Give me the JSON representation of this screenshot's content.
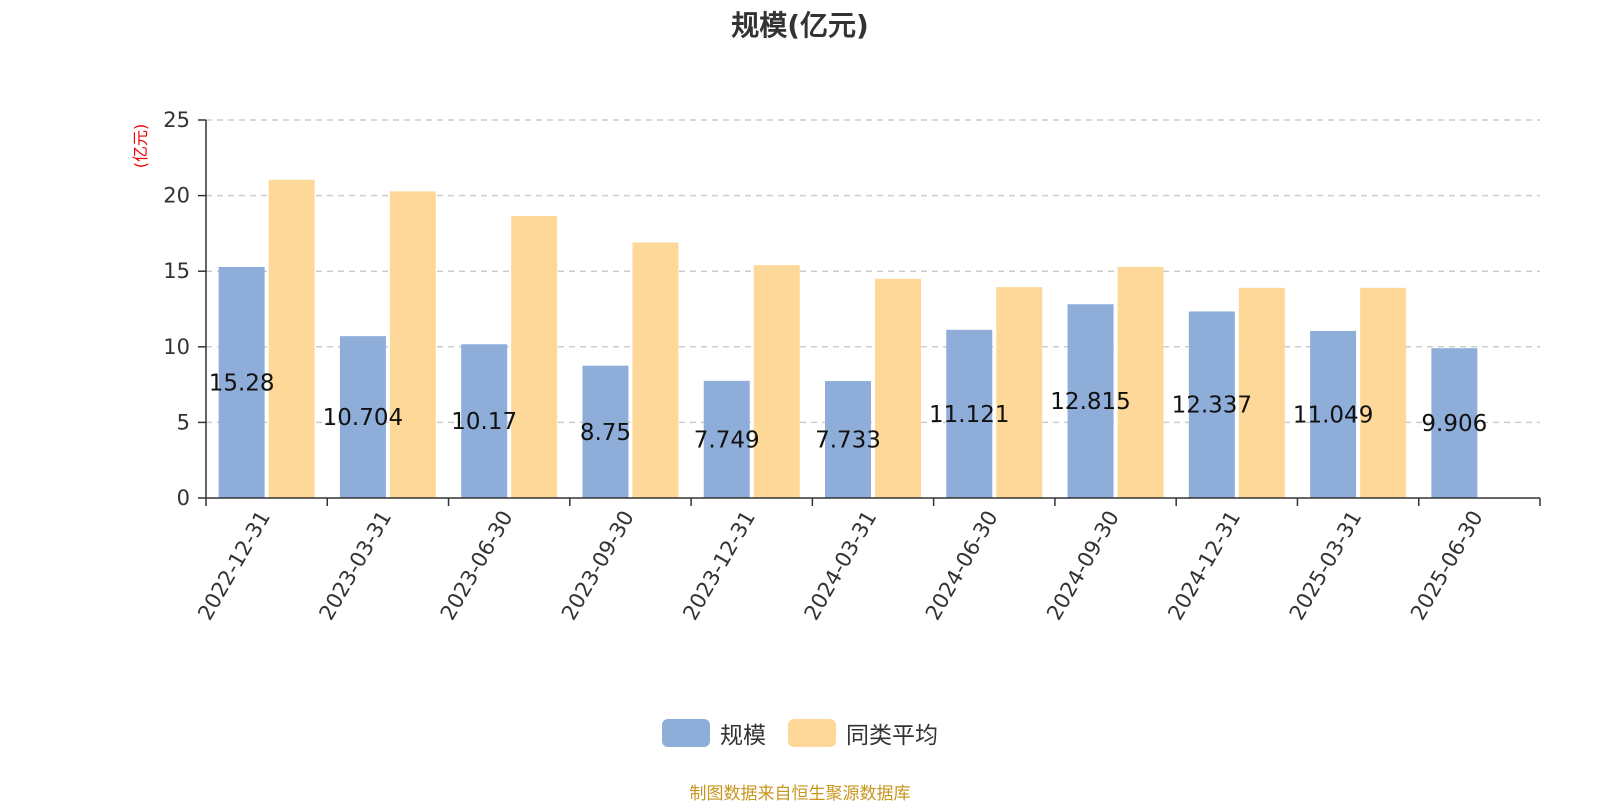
{
  "chart_data": {
    "type": "bar",
    "title": "规模(亿元)",
    "ylabel": "(亿元)",
    "xlabel": "",
    "categories": [
      "2022-12-31",
      "2023-03-31",
      "2023-06-30",
      "2023-09-30",
      "2023-12-31",
      "2024-03-31",
      "2024-06-30",
      "2024-09-30",
      "2024-12-31",
      "2025-03-31",
      "2025-06-30"
    ],
    "series": [
      {
        "name": "规模",
        "color": "#8eadd9",
        "values": [
          15.28,
          10.704,
          10.17,
          8.75,
          7.749,
          7.733,
          11.121,
          12.815,
          12.337,
          11.049,
          9.906
        ],
        "labels": [
          "15.28",
          "10.704",
          "10.17",
          "8.75",
          "7.749",
          "7.733",
          "11.121",
          "12.815",
          "12.337",
          "11.049",
          "9.906"
        ]
      },
      {
        "name": "同类平均",
        "color": "#fed899",
        "values": [
          21.05,
          20.28,
          18.65,
          16.9,
          15.4,
          14.5,
          13.95,
          15.28,
          13.9,
          13.9,
          null
        ]
      }
    ],
    "ylim": [
      0,
      25
    ],
    "yticks": [
      0,
      5,
      10,
      15,
      20,
      25
    ],
    "grid": true,
    "legend_position": "bottom"
  },
  "footer": {
    "source": "制图数据来自恒生聚源数据库"
  }
}
